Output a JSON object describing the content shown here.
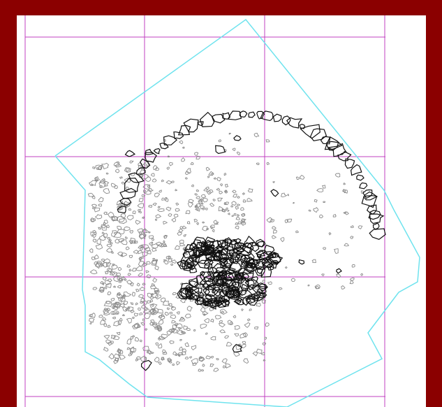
{
  "plan": {
    "frame_color": "#8b0000",
    "grid_color": "#c040c0",
    "boundary_color": "#6fe3ee",
    "stone_outline_color": "#8a8a8a",
    "feature_outline_color": "#111111",
    "paper_color": "#ffffff"
  }
}
